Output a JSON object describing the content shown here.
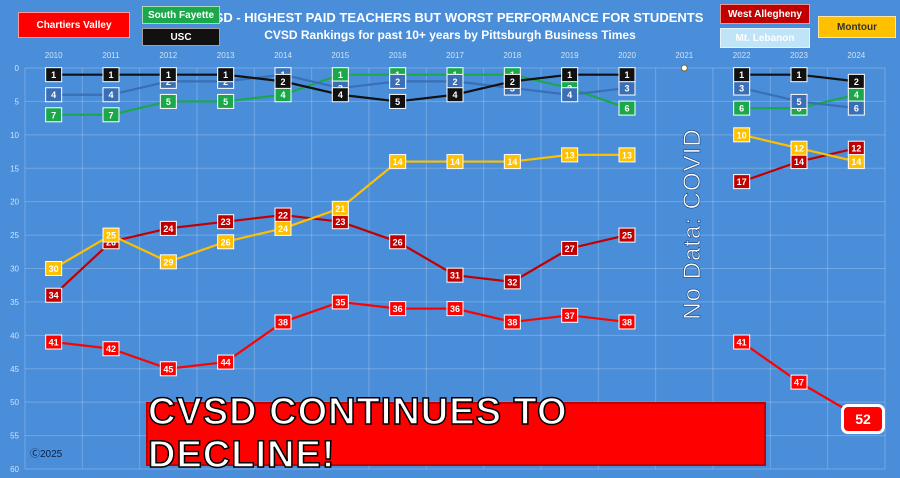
{
  "header": {
    "title": "CVSD - HIGHEST PAID TEACHERS BUT WORST PERFORMANCE FOR STUDENTS",
    "subtitle": "CVSD Rankings for past 10+ years by Pittsburgh Business Times"
  },
  "legend": {
    "chartiers_valley": "Chartiers Valley",
    "south_fayette": "South Fayette",
    "usc": "USC",
    "west_allegheny": "West Allegheny",
    "mt_lebanon": "Mt. Lebanon",
    "montour": "Montour"
  },
  "annotations": {
    "covid": "No Data: COVID",
    "banner": "CVSD CONTINUES TO DECLINE!",
    "copyright": "Ⓒ2025",
    "final_rank": "52"
  },
  "colors": {
    "background": "#4a8ed9",
    "chartiers_valley": "#ff0000",
    "south_fayette": "#1aa84a",
    "usc": "#111111",
    "west_allegheny": "#c00000",
    "mt_lebanon": "#3a6fb5",
    "montour": "#ffc000"
  },
  "chart_data": {
    "type": "line",
    "title": "CVSD - HIGHEST PAID TEACHERS BUT WORST PERFORMANCE FOR STUDENTS",
    "subtitle": "CVSD Rankings for past 10+ years by Pittsburgh Business Times",
    "x": [
      "2010",
      "2011",
      "2012",
      "2013",
      "2014",
      "2015",
      "2016",
      "2017",
      "2018",
      "2019",
      "2020",
      "2021",
      "2022",
      "2023",
      "2024"
    ],
    "ylim": [
      0,
      60
    ],
    "y_inverted": true,
    "y_ticks": [
      0,
      5,
      10,
      15,
      20,
      25,
      30,
      35,
      40,
      45,
      50,
      55,
      60
    ],
    "grid": true,
    "series": [
      {
        "name": "Chartiers Valley",
        "color": "#ff0000",
        "text_color": "#ffffff",
        "values": [
          41,
          42,
          45,
          44,
          38,
          35,
          36,
          36,
          38,
          37,
          38,
          null,
          41,
          47,
          52
        ]
      },
      {
        "name": "West Allegheny",
        "color": "#c00000",
        "text_color": "#ffffff",
        "values": [
          34,
          26,
          24,
          23,
          22,
          23,
          26,
          31,
          32,
          27,
          25,
          null,
          17,
          14,
          12
        ]
      },
      {
        "name": "Montour",
        "color": "#ffc000",
        "text_color": "#ffffff",
        "values": [
          30,
          25,
          29,
          26,
          24,
          21,
          14,
          14,
          14,
          13,
          13,
          null,
          10,
          12,
          14
        ]
      },
      {
        "name": "South Fayette",
        "color": "#1aa84a",
        "text_color": "#ffffff",
        "values": [
          7,
          7,
          5,
          5,
          4,
          1,
          1,
          1,
          1,
          3,
          6,
          null,
          6,
          6,
          4
        ]
      },
      {
        "name": "Mt. Lebanon",
        "color": "#3a6fb5",
        "text_color": "#ffffff",
        "values": [
          4,
          4,
          2,
          2,
          1,
          3,
          2,
          2,
          3,
          4,
          3,
          null,
          3,
          5,
          6
        ]
      },
      {
        "name": "USC",
        "color": "#111111",
        "text_color": "#ffffff",
        "values": [
          1,
          1,
          1,
          1,
          2,
          4,
          5,
          4,
          2,
          1,
          1,
          null,
          1,
          1,
          2
        ]
      }
    ]
  }
}
